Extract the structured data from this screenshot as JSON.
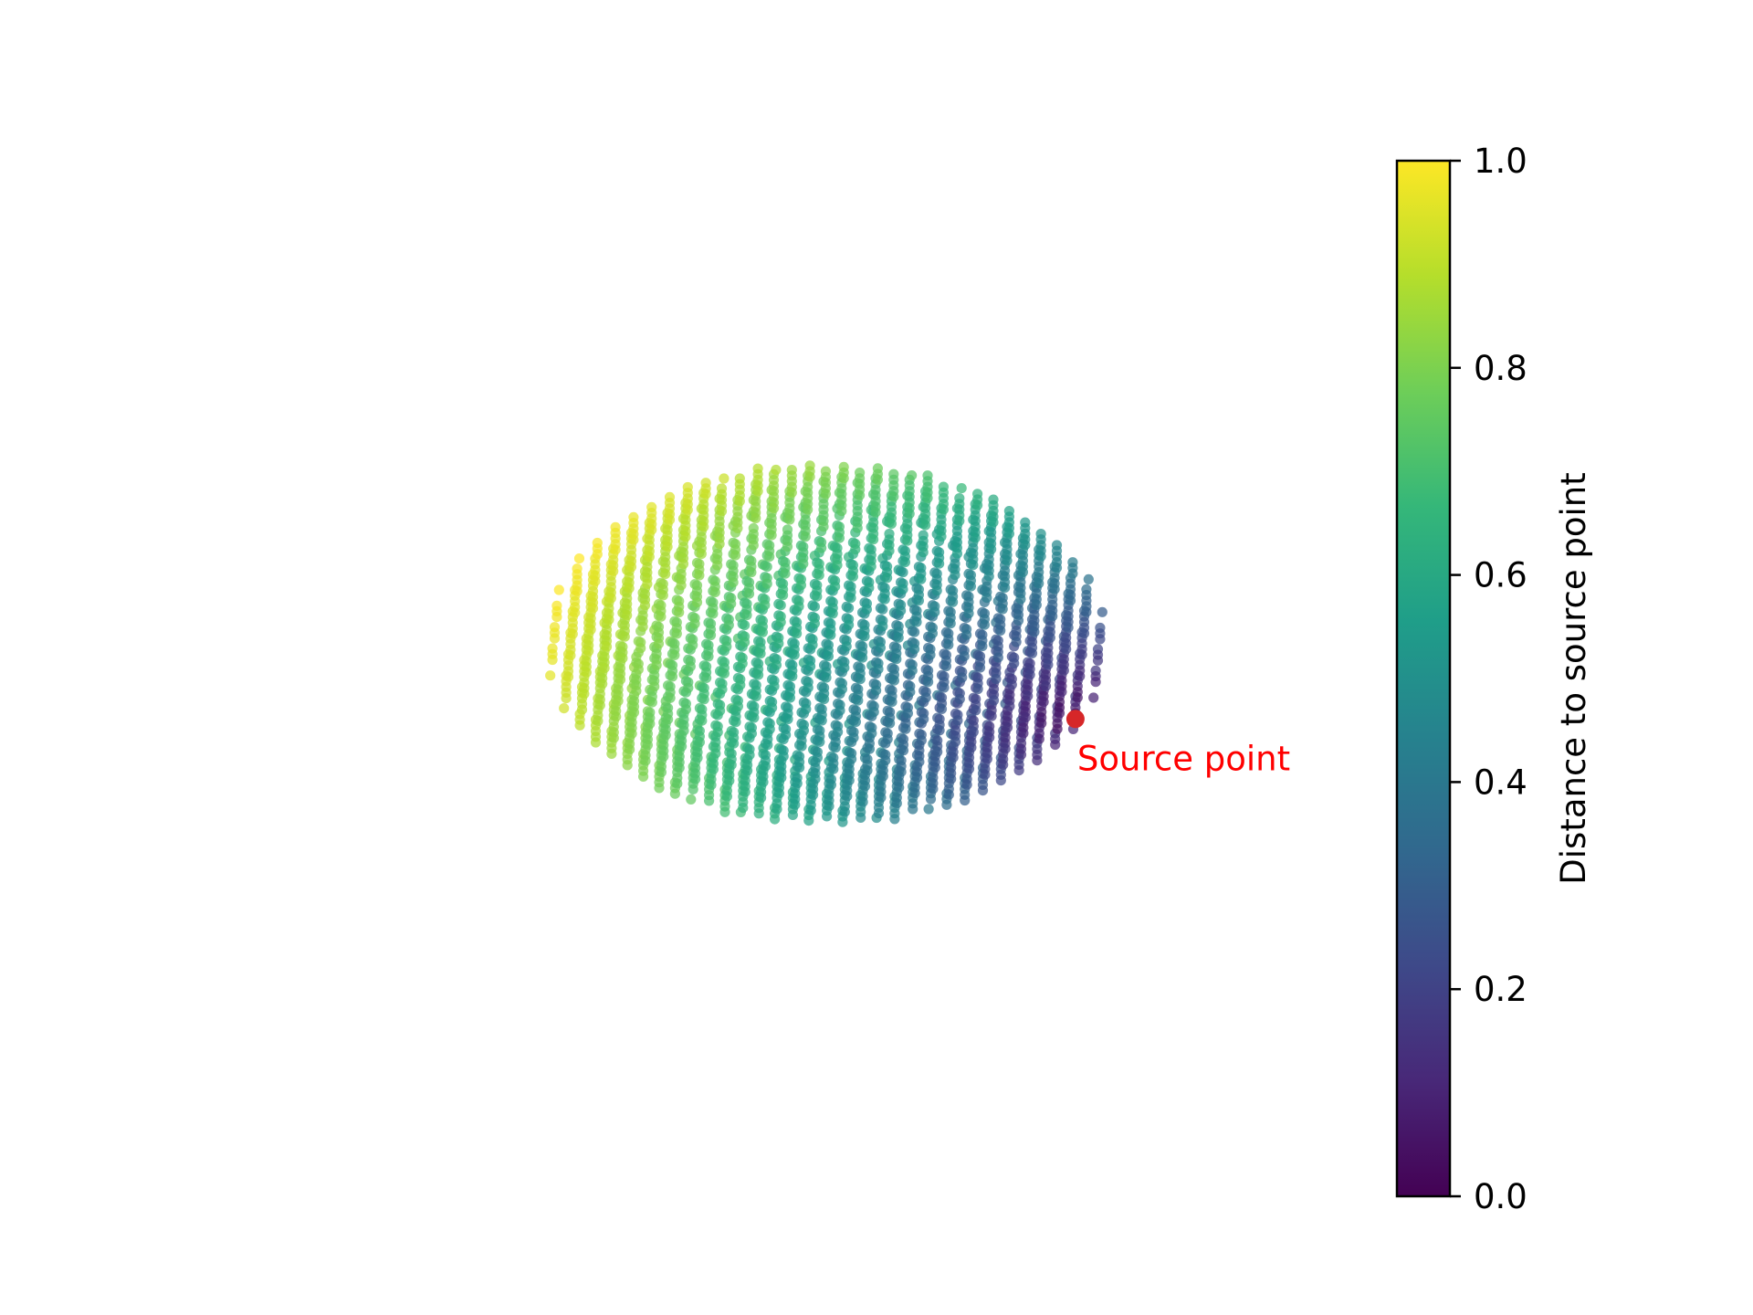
{
  "chart_data": {
    "type": "scatter",
    "title": "",
    "xlabel": "",
    "ylabel": "",
    "axes_visible": false,
    "grid": false,
    "colormap": "viridis",
    "colorbar": {
      "label": "Distance to source point",
      "range": [
        0.0,
        1.0
      ],
      "ticks": [
        0.0,
        0.2,
        0.4,
        0.6,
        0.8,
        1.0
      ],
      "tick_labels": [
        "0.0",
        "0.2",
        "0.4",
        "0.6",
        "0.8",
        "1.0"
      ],
      "position": "right"
    },
    "viridis_stops": [
      "#440154",
      "#482878",
      "#3e4989",
      "#31688e",
      "#26828e",
      "#1f9e89",
      "#35b779",
      "#6ece58",
      "#b5de2b",
      "#fde725"
    ],
    "point_cloud": {
      "description_shape": "oblate ellipsoid sampled on a regular grid, viewed in 3D perspective",
      "point_count_estimate": 1400,
      "value_min": 0.0,
      "value_max": 1.0
    },
    "source_point": {
      "label": "Source point",
      "value": 0.0,
      "marker_color": "#d62728",
      "label_color": "#ff0000"
    }
  }
}
